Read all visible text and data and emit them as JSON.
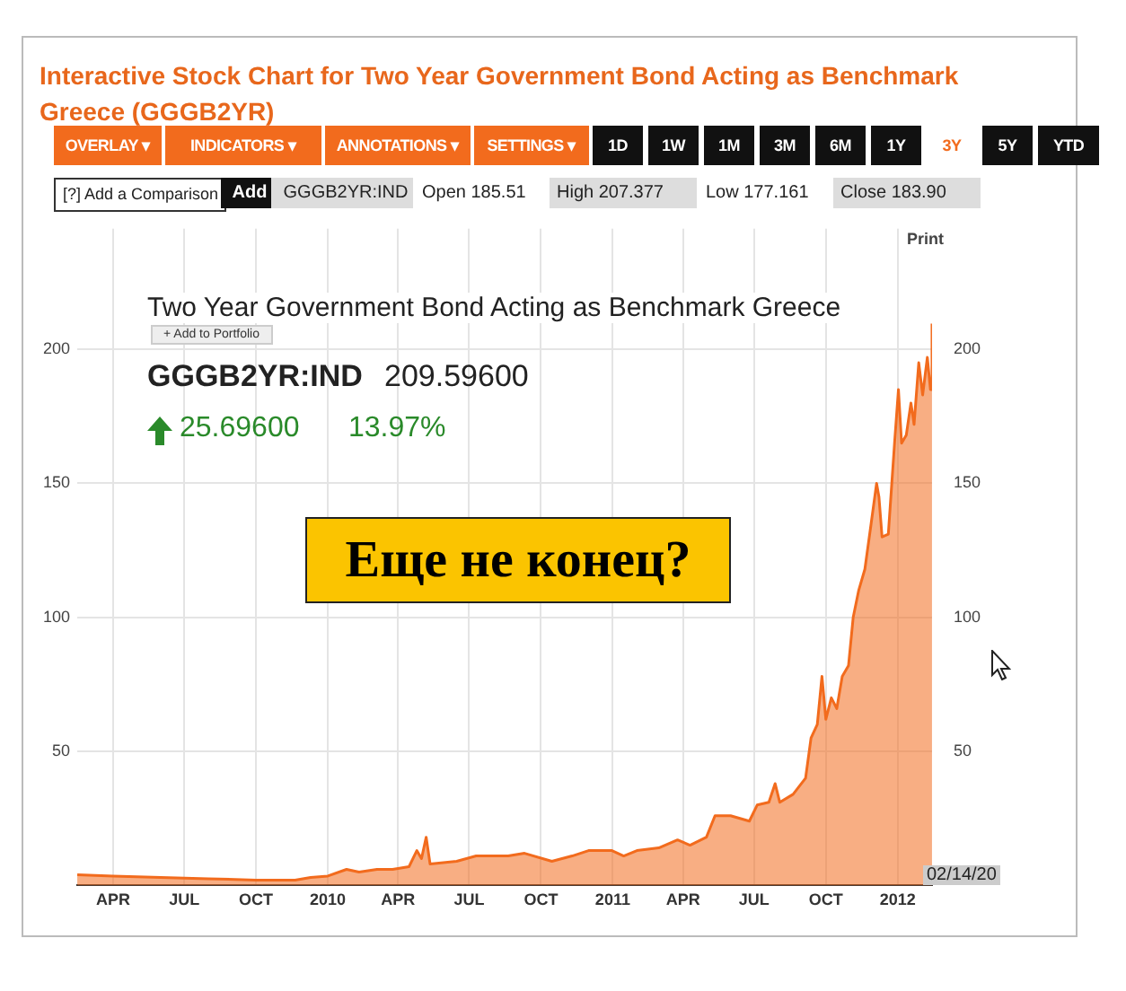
{
  "chart_data": {
    "type": "area",
    "title": "Interactive Stock Chart for Two Year Government Bond Acting as Benchmark Greece (GGGB2YR)",
    "x": [
      "2009-02-14",
      "2009-04-01",
      "2009-06-01",
      "2009-08-01",
      "2009-10-01",
      "2009-11-20",
      "2009-12-10",
      "2010-01-01",
      "2010-01-25",
      "2010-02-10",
      "2010-03-05",
      "2010-03-25",
      "2010-04-15",
      "2010-04-25",
      "2010-05-01",
      "2010-05-07",
      "2010-05-12",
      "2010-06-15",
      "2010-07-10",
      "2010-08-20",
      "2010-09-10",
      "2010-10-15",
      "2010-11-10",
      "2010-12-01",
      "2010-12-31",
      "2011-01-15",
      "2011-02-01",
      "2011-03-01",
      "2011-03-25",
      "2011-04-10",
      "2011-05-01",
      "2011-05-12",
      "2011-06-01",
      "2011-06-25",
      "2011-07-05",
      "2011-07-20",
      "2011-07-28",
      "2011-08-03",
      "2011-08-20",
      "2011-09-05",
      "2011-09-12",
      "2011-09-20",
      "2011-09-26",
      "2011-10-01",
      "2011-10-08",
      "2011-10-15",
      "2011-10-22",
      "2011-10-30",
      "2011-11-05",
      "2011-11-12",
      "2011-11-20",
      "2011-11-28",
      "2011-12-05",
      "2011-12-08",
      "2011-12-12",
      "2011-12-20",
      "2011-12-28",
      "2012-01-02",
      "2012-01-06",
      "2012-01-12",
      "2012-01-18",
      "2012-01-22",
      "2012-01-28",
      "2012-02-02",
      "2012-02-08",
      "2012-02-12",
      "2012-02-14"
    ],
    "series": [
      {
        "color": "#f26b1d",
        "values": [
          4,
          3.5,
          3,
          2.5,
          2,
          2,
          3,
          3.5,
          6,
          5,
          6,
          6,
          7,
          13,
          10,
          18,
          8,
          9,
          11,
          11,
          12,
          9,
          11,
          13,
          13,
          11,
          13,
          14,
          17,
          15,
          18,
          26,
          26,
          24,
          30,
          31,
          38,
          31,
          34,
          40,
          55,
          60,
          78,
          62,
          70,
          66,
          78,
          82,
          100,
          110,
          118,
          135,
          150,
          145,
          130,
          131,
          165,
          185,
          165,
          168,
          180,
          172,
          195,
          183,
          197,
          185,
          209.6
        ]
      }
    ],
    "xlim": [
      "2009-02-14",
      "2012-02-14"
    ],
    "xticks": [
      {
        "value": "2009-04",
        "label": "APR"
      },
      {
        "value": "2009-07",
        "label": "JUL"
      },
      {
        "value": "2009-10",
        "label": "OCT"
      },
      {
        "value": "2010-01",
        "label": "2010"
      },
      {
        "value": "2010-04",
        "label": "APR"
      },
      {
        "value": "2010-07",
        "label": "JUL"
      },
      {
        "value": "2010-10",
        "label": "OCT"
      },
      {
        "value": "2011-01",
        "label": "2011"
      },
      {
        "value": "2011-04",
        "label": "APR"
      },
      {
        "value": "2011-07",
        "label": "JUL"
      },
      {
        "value": "2011-10",
        "label": "OCT"
      },
      {
        "value": "2012-01",
        "label": "2012"
      }
    ],
    "ylim": [
      0,
      245
    ],
    "yticks": [
      50,
      100,
      150,
      200
    ],
    "y2lim": [
      0,
      245
    ],
    "y2ticks": [
      50,
      100,
      150,
      200
    ],
    "grid": true,
    "annotations": [
      "OVERLAY ▾",
      "INDICATORS ▾",
      "ANNOTATIONS ▾",
      "SETTINGS ▾",
      "1D",
      "1W",
      "1M",
      "3M",
      "6M",
      "1Y",
      "3Y",
      "5Y",
      "YTD",
      "[?] Add a Comparison",
      "Add",
      "GGGB2YR:IND",
      "Open 185.51",
      "High 207.377",
      "Low 177.161",
      "Close 183.90",
      "Print",
      "Two Year Government Bond Acting as Benchmark Greece",
      "+ Add to Portfolio",
      "GGGB2YR:IND",
      "209.59600",
      "25.69600",
      "13.97%",
      "Еще не конец?",
      "02/14/20"
    ]
  }
}
